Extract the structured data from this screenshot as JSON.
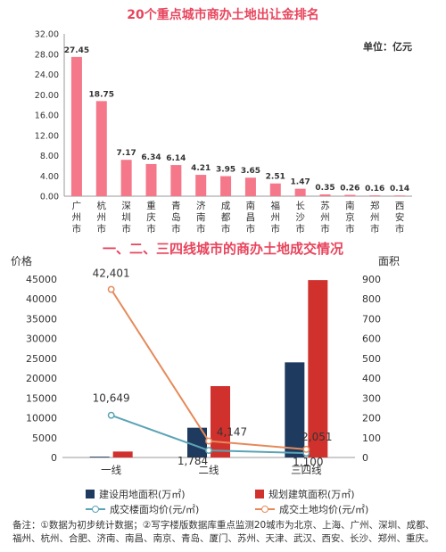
{
  "chart_data": [
    {
      "type": "bar",
      "title": "20个重点城市商办土地出让金排名",
      "unit_label": "单位：亿元",
      "categories": [
        "广州市",
        "杭州市",
        "深圳市",
        "重庆市",
        "青岛市",
        "济南市",
        "成都市",
        "南昌市",
        "福州市",
        "长沙市",
        "苏州市",
        "南京市",
        "郑州市",
        "西安市"
      ],
      "values": [
        27.45,
        18.75,
        7.17,
        6.34,
        6.14,
        4.21,
        3.95,
        3.65,
        2.51,
        1.47,
        0.35,
        0.26,
        0.16,
        0.14
      ],
      "value_labels": [
        "27.45",
        "18.75",
        "7.17",
        "6.34",
        "6.14",
        "4.21",
        "3.95",
        "3.65",
        "2.51",
        "1.47",
        "0.35",
        "0.26",
        "0.16",
        "0.14"
      ],
      "ylim": [
        0,
        32
      ],
      "yticks": [
        "0.00",
        "4.00",
        "8.00",
        "12.00",
        "16.00",
        "20.00",
        "24.00",
        "28.00",
        "32.00"
      ],
      "colors": {
        "bar": "#f4788a"
      }
    },
    {
      "type": "bar",
      "title": "一、二、三四线城市的商办土地成交情况",
      "ylabel_left": "价格",
      "ylabel_right": "面积",
      "categories": [
        "一线",
        "二线",
        "三四线"
      ],
      "ylim_left": [
        0,
        45000
      ],
      "yticks_left": [
        "0",
        "5000",
        "10000",
        "15000",
        "20000",
        "25000",
        "30000",
        "35000",
        "40000",
        "45000"
      ],
      "ylim_right": [
        0,
        900
      ],
      "yticks_right": [
        "0",
        "100",
        "200",
        "300",
        "400",
        "500",
        "600",
        "700",
        "800",
        "900"
      ],
      "series": [
        {
          "name": "建设用地面积(万㎡)",
          "kind": "bar",
          "axis": "right",
          "values": [
            4,
            150,
            480
          ],
          "color": "#1f3a5f"
        },
        {
          "name": "规划建筑面积(万㎡)",
          "kind": "bar",
          "axis": "right",
          "values": [
            30,
            360,
            895
          ],
          "color": "#d0312d"
        },
        {
          "name": "成交楼面均价(元/㎡)",
          "kind": "line",
          "axis": "left",
          "values": [
            10649,
            1784,
            1100
          ],
          "labels": [
            "10,649",
            "1,784",
            "1,100"
          ],
          "color": "#5ba4b4"
        },
        {
          "name": "成交土地均价(元/㎡)",
          "kind": "line",
          "axis": "left",
          "values": [
            42401,
            4147,
            2051
          ],
          "labels": [
            "42,401",
            "4,147",
            "2,051"
          ],
          "color": "#e58a5b"
        }
      ]
    }
  ],
  "note": "备注：①数据为初步统计数据；②写字楼版数据库重点监测20城市为北京、上海、广州、深圳、成都、福州、杭州、合肥、济南、南昌、南京、青岛、厦门、苏州、天津、武汉、西安、长沙、郑州、重庆。"
}
